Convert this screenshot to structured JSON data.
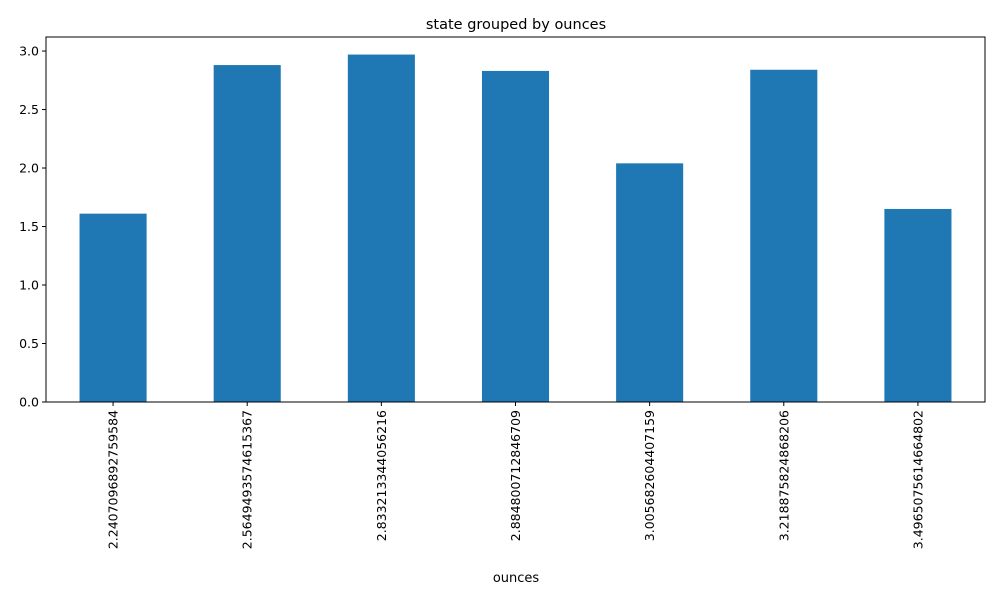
{
  "chart_data": {
    "type": "bar",
    "title": "state grouped by ounces",
    "xlabel": "ounces",
    "ylabel": "",
    "categories": [
      "2.2407096892759584",
      "2.5649493574615367",
      "2.833213344056216",
      "2.884800712846709",
      "3.005682604407159",
      "3.218875824868206",
      "3.4965075614664802"
    ],
    "values": [
      1.61,
      2.88,
      2.97,
      2.83,
      2.04,
      2.84,
      1.65
    ],
    "ylim": [
      0,
      3.12
    ],
    "yticks": [
      0.0,
      0.5,
      1.0,
      1.5,
      2.0,
      2.5,
      3.0
    ],
    "ytick_labels": [
      "0.0",
      "0.5",
      "1.0",
      "1.5",
      "2.0",
      "2.5",
      "3.0"
    ],
    "grid": false,
    "bar_color": "#1f77b4"
  }
}
